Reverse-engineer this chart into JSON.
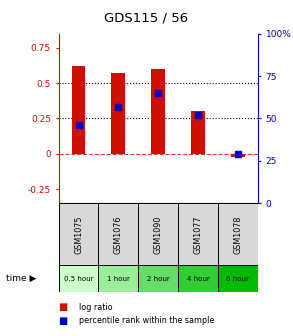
{
  "title": "GDS115 / 56",
  "categories": [
    "GSM1075",
    "GSM1076",
    "GSM1090",
    "GSM1077",
    "GSM1078"
  ],
  "time_labels": [
    "0.5 hour",
    "1 hour",
    "2 hour",
    "4 hour",
    "6 hour"
  ],
  "time_colors": [
    "#ccffcc",
    "#99ee99",
    "#66dd66",
    "#33cc33",
    "#00bb00"
  ],
  "log_ratios": [
    0.62,
    0.57,
    0.6,
    0.3,
    -0.02
  ],
  "percentile_ranks": [
    46,
    57,
    65,
    52,
    29
  ],
  "bar_color": "#cc1100",
  "dot_color": "#0000cc",
  "ylim_left": [
    -0.35,
    0.85
  ],
  "ylim_right": [
    0,
    100
  ],
  "yticks_left": [
    -0.25,
    0,
    0.25,
    0.5,
    0.75
  ],
  "yticks_right": [
    0,
    25,
    50,
    75,
    100
  ],
  "ytick_labels_left": [
    "-0.25",
    "0",
    "0.25",
    "0.5",
    "0.75"
  ],
  "ytick_labels_right": [
    "0",
    "25",
    "50",
    "75",
    "100%"
  ],
  "hlines": [
    0.5,
    0.25
  ],
  "zero_line": 0.0,
  "bg_color": "#d8d8d8",
  "plot_bg": "#ffffff",
  "legend_log_ratio": "log ratio",
  "legend_percentile": "percentile rank within the sample",
  "time_label": "time"
}
